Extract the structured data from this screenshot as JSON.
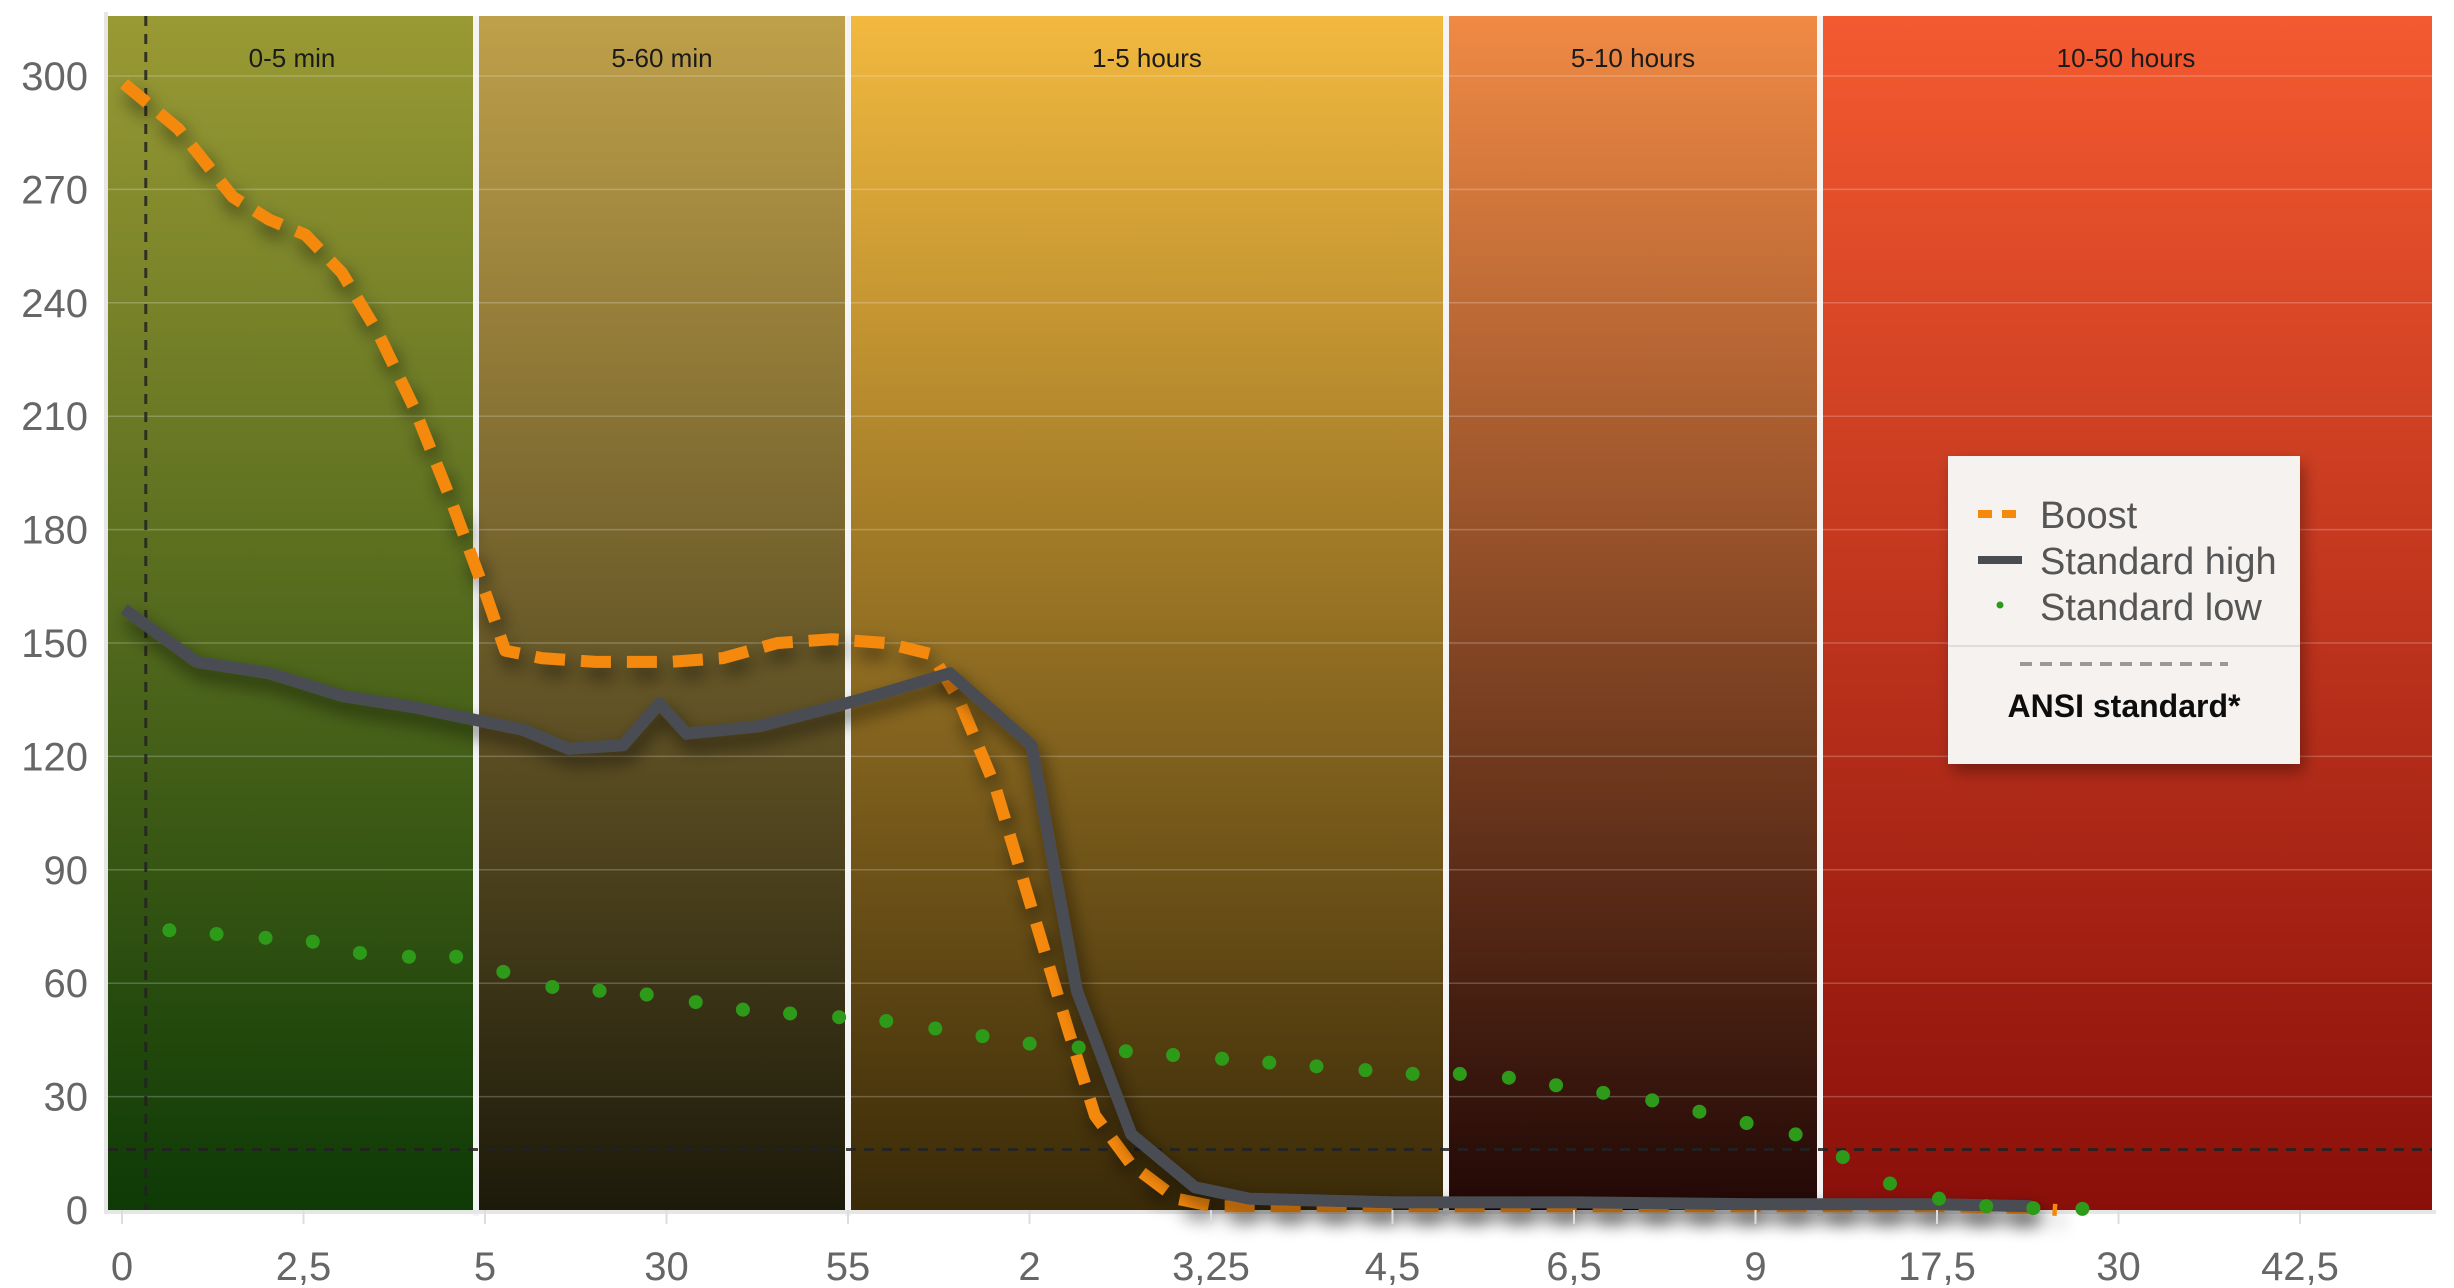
{
  "chart_data": {
    "type": "line",
    "title": "",
    "xlabel": "",
    "ylabel": "",
    "ylim": [
      0,
      300
    ],
    "y_ticks": [
      "0",
      "30",
      "60",
      "90",
      "120",
      "150",
      "180",
      "210",
      "240",
      "270",
      "300"
    ],
    "x_ticks": [
      "0",
      "2,5",
      "5",
      "30",
      "55",
      "2",
      "3,25",
      "4,5",
      "6,5",
      "9",
      "17,5",
      "30",
      "42,5"
    ],
    "grid": true,
    "legend_position": "right",
    "bands": [
      {
        "label": "0-5 min",
        "color_top": "#9a9a34",
        "color_bottom": "#0e3a06"
      },
      {
        "label": "5-60 min",
        "color_top": "#bfa04a",
        "color_bottom": "#1c1a0a"
      },
      {
        "label": "1-5 hours",
        "color_top": "#f2b93f",
        "color_bottom": "#3a2a08"
      },
      {
        "label": "5-10 hours",
        "color_top": "#f08a45",
        "color_bottom": "#220806"
      },
      {
        "label": "10-50 hours",
        "color_top": "#f45a30",
        "color_bottom": "#8a0f0a"
      }
    ],
    "series": [
      {
        "name": "Boost",
        "style": "dashed",
        "color": "#f5890f",
        "points": [
          [
            0,
            298
          ],
          [
            0.3,
            286
          ],
          [
            0.6,
            268
          ],
          [
            0.8,
            262
          ],
          [
            1.0,
            258
          ],
          [
            1.2,
            248
          ],
          [
            1.4,
            232
          ],
          [
            1.6,
            212
          ],
          [
            1.8,
            188
          ],
          [
            2.0,
            162
          ],
          [
            2.1,
            148
          ],
          [
            2.3,
            146
          ],
          [
            2.6,
            145
          ],
          [
            3.0,
            145
          ],
          [
            3.3,
            146
          ],
          [
            3.6,
            150
          ],
          [
            3.9,
            151
          ],
          [
            4.2,
            150
          ],
          [
            4.45,
            147
          ],
          [
            4.6,
            135
          ],
          [
            4.8,
            112
          ],
          [
            5.0,
            80
          ],
          [
            5.2,
            48
          ],
          [
            5.35,
            25
          ],
          [
            5.55,
            12
          ],
          [
            5.8,
            3
          ],
          [
            6.0,
            1
          ],
          [
            7.0,
            1
          ],
          [
            8.0,
            1
          ],
          [
            9.0,
            1
          ],
          [
            10.0,
            1
          ],
          [
            10.5,
            0.5
          ],
          [
            10.65,
            0
          ]
        ]
      },
      {
        "name": "Standard high",
        "style": "solid",
        "color": "#4a4d52",
        "points": [
          [
            0,
            159
          ],
          [
            0.4,
            145
          ],
          [
            0.8,
            142
          ],
          [
            1.2,
            136
          ],
          [
            1.6,
            133
          ],
          [
            2.0,
            129
          ],
          [
            2.2,
            127
          ],
          [
            2.45,
            122
          ],
          [
            2.75,
            123
          ],
          [
            2.95,
            134
          ],
          [
            3.1,
            126
          ],
          [
            3.5,
            128
          ],
          [
            3.9,
            133
          ],
          [
            4.2,
            137
          ],
          [
            4.55,
            142
          ],
          [
            5.0,
            123
          ],
          [
            5.25,
            58
          ],
          [
            5.55,
            20
          ],
          [
            5.9,
            6
          ],
          [
            6.2,
            3
          ],
          [
            7.0,
            2
          ],
          [
            8.0,
            2
          ],
          [
            9.0,
            1.5
          ],
          [
            10.0,
            1.5
          ],
          [
            10.5,
            1
          ],
          [
            10.5,
            0
          ]
        ]
      },
      {
        "name": "Standard low",
        "style": "dotted",
        "color": "#2e9a1a",
        "points": [
          [
            0.25,
            74
          ],
          [
            0.51,
            73
          ],
          [
            0.78,
            72
          ],
          [
            1.04,
            71
          ],
          [
            1.3,
            68
          ],
          [
            1.57,
            67
          ],
          [
            1.83,
            67
          ],
          [
            2.09,
            63
          ],
          [
            2.36,
            59
          ],
          [
            2.62,
            58
          ],
          [
            2.88,
            57
          ],
          [
            3.15,
            55
          ],
          [
            3.41,
            53
          ],
          [
            3.67,
            52
          ],
          [
            3.94,
            51
          ],
          [
            4.2,
            50
          ],
          [
            4.47,
            48
          ],
          [
            4.73,
            46
          ],
          [
            4.99,
            44
          ],
          [
            5.26,
            43
          ],
          [
            5.52,
            42
          ],
          [
            5.78,
            41
          ],
          [
            6.05,
            40
          ],
          [
            6.31,
            39
          ],
          [
            6.57,
            38
          ],
          [
            6.84,
            37
          ],
          [
            7.1,
            36
          ],
          [
            7.36,
            36
          ],
          [
            7.63,
            35
          ],
          [
            7.89,
            33
          ],
          [
            8.15,
            31
          ],
          [
            8.42,
            29
          ],
          [
            8.68,
            26
          ],
          [
            8.94,
            23
          ],
          [
            9.21,
            20
          ],
          [
            9.47,
            14
          ],
          [
            9.73,
            7
          ],
          [
            10.0,
            3
          ],
          [
            10.26,
            1
          ],
          [
            10.52,
            0.5
          ],
          [
            10.79,
            0.3
          ]
        ]
      }
    ],
    "reference_line": {
      "name": "ANSI standard*",
      "value": 16,
      "style": "dashed",
      "color": "#222222"
    },
    "reference_vline": {
      "x": 0.12
    }
  }
}
